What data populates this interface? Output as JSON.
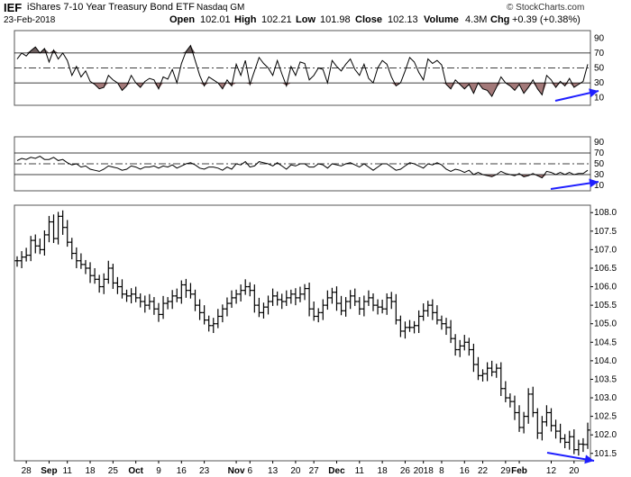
{
  "header": {
    "symbol": "IEF",
    "name": "iShares 7-10 Year Treasury Bond ETF",
    "exchange": "Nasdaq GM",
    "watermark": "© StockCharts.com",
    "date": "23-Feb-2018",
    "open_label": "Open",
    "open": "102.01",
    "high_label": "High",
    "high": "102.21",
    "low_label": "Low",
    "low": "101.98",
    "close_label": "Close",
    "close": "102.13",
    "volume_label": "Volume",
    "volume": "4.3M",
    "chg_label": "Chg",
    "chg": "+0.39 (+0.38%)"
  },
  "colors": {
    "price_bars": "#000000",
    "oscillator_line": "#000000",
    "overbought_fill": "#6b5d5d",
    "oversold_fill": "#a37979",
    "annotation_arrow": "#1f1fff",
    "grid": "#dddddd",
    "frame": "#555555"
  },
  "chart_data": [
    {
      "type": "line",
      "panel": "oscillator-1",
      "y_ticks": [
        "10",
        "30",
        "50",
        "70",
        "90"
      ],
      "ylim": [
        0,
        100
      ],
      "guide_lines": [
        30,
        50,
        70
      ],
      "x": [
        "Aug 24",
        "Aug 25",
        "Aug 28",
        "Aug 29",
        "Aug 30",
        "Aug 31",
        "Sep 1",
        "Sep 5",
        "Sep 6",
        "Sep 7",
        "Sep 8",
        "Sep 11",
        "Sep 12",
        "Sep 13",
        "Sep 14",
        "Sep 15",
        "Sep 18",
        "Sep 19",
        "Sep 20",
        "Sep 21",
        "Sep 22",
        "Sep 25",
        "Sep 26",
        "Sep 27",
        "Sep 28",
        "Sep 29",
        "Oct 2",
        "Oct 3",
        "Oct 4",
        "Oct 5",
        "Oct 6",
        "Oct 9",
        "Oct 10",
        "Oct 11",
        "Oct 12",
        "Oct 13",
        "Oct 16",
        "Oct 17",
        "Oct 18",
        "Oct 19",
        "Oct 20",
        "Oct 23",
        "Oct 24",
        "Oct 25",
        "Oct 26",
        "Oct 27",
        "Oct 30",
        "Oct 31",
        "Nov 1",
        "Nov 2",
        "Nov 3",
        "Nov 6",
        "Nov 7",
        "Nov 8",
        "Nov 9",
        "Nov 10",
        "Nov 13",
        "Nov 14",
        "Nov 15",
        "Nov 16",
        "Nov 17",
        "Nov 20",
        "Nov 21",
        "Nov 22",
        "Nov 24",
        "Nov 27",
        "Nov 28",
        "Nov 29",
        "Nov 30",
        "Dec 1",
        "Dec 4",
        "Dec 5",
        "Dec 6",
        "Dec 7",
        "Dec 8",
        "Dec 11",
        "Dec 12",
        "Dec 13",
        "Dec 14",
        "Dec 15",
        "Dec 18",
        "Dec 19",
        "Dec 20",
        "Dec 21",
        "Dec 22",
        "Dec 26",
        "Dec 27",
        "Dec 28",
        "Dec 29",
        "Jan 2",
        "Jan 3",
        "Jan 4",
        "Jan 5",
        "Jan 8",
        "Jan 9",
        "Jan 10",
        "Jan 11",
        "Jan 12",
        "Jan 16",
        "Jan 17",
        "Jan 18",
        "Jan 19",
        "Jan 22",
        "Jan 23",
        "Jan 24",
        "Jan 25",
        "Jan 26",
        "Jan 29",
        "Jan 30",
        "Jan 31",
        "Feb 1",
        "Feb 2",
        "Feb 5",
        "Feb 6",
        "Feb 7",
        "Feb 8",
        "Feb 9",
        "Feb 12",
        "Feb 13",
        "Feb 14",
        "Feb 15",
        "Feb 16",
        "Feb 20",
        "Feb 21",
        "Feb 22",
        "Feb 23"
      ],
      "values": [
        62,
        70,
        66,
        73,
        78,
        70,
        76,
        58,
        74,
        62,
        70,
        60,
        40,
        52,
        38,
        46,
        32,
        28,
        22,
        24,
        40,
        34,
        30,
        20,
        26,
        40,
        30,
        24,
        32,
        36,
        34,
        22,
        38,
        35,
        48,
        30,
        56,
        72,
        80,
        60,
        40,
        26,
        38,
        34,
        30,
        22,
        34,
        26,
        55,
        40,
        60,
        28,
        46,
        64,
        56,
        50,
        40,
        60,
        42,
        26,
        52,
        40,
        58,
        56,
        34,
        40,
        50,
        48,
        30,
        60,
        52,
        46,
        55,
        62,
        48,
        40,
        55,
        36,
        30,
        50,
        60,
        55,
        38,
        26,
        30,
        46,
        64,
        58,
        44,
        34,
        62,
        56,
        60,
        54,
        28,
        22,
        34,
        28,
        22,
        28,
        16,
        30,
        22,
        20,
        12,
        24,
        38,
        30,
        26,
        20,
        28,
        16,
        24,
        34,
        22,
        14,
        40,
        34,
        24,
        32,
        26,
        36,
        24,
        28,
        32,
        55
      ]
    },
    {
      "type": "line",
      "panel": "oscillator-2",
      "y_ticks": [
        "10",
        "30",
        "50",
        "70",
        "90"
      ],
      "ylim": [
        0,
        100
      ],
      "guide_lines": [
        30,
        50,
        70
      ],
      "x": [
        "Aug 24",
        "Aug 25",
        "Aug 28",
        "Aug 29",
        "Aug 30",
        "Aug 31",
        "Sep 1",
        "Sep 5",
        "Sep 6",
        "Sep 7",
        "Sep 8",
        "Sep 11",
        "Sep 12",
        "Sep 13",
        "Sep 14",
        "Sep 15",
        "Sep 18",
        "Sep 19",
        "Sep 20",
        "Sep 21",
        "Sep 22",
        "Sep 25",
        "Sep 26",
        "Sep 27",
        "Sep 28",
        "Sep 29",
        "Oct 2",
        "Oct 3",
        "Oct 4",
        "Oct 5",
        "Oct 6",
        "Oct 9",
        "Oct 10",
        "Oct 11",
        "Oct 12",
        "Oct 13",
        "Oct 16",
        "Oct 17",
        "Oct 18",
        "Oct 19",
        "Oct 20",
        "Oct 23",
        "Oct 24",
        "Oct 25",
        "Oct 26",
        "Oct 27",
        "Oct 30",
        "Oct 31",
        "Nov 1",
        "Nov 2",
        "Nov 3",
        "Nov 6",
        "Nov 7",
        "Nov 8",
        "Nov 9",
        "Nov 10",
        "Nov 13",
        "Nov 14",
        "Nov 15",
        "Nov 16",
        "Nov 17",
        "Nov 20",
        "Nov 21",
        "Nov 22",
        "Nov 24",
        "Nov 27",
        "Nov 28",
        "Nov 29",
        "Nov 30",
        "Dec 1",
        "Dec 4",
        "Dec 5",
        "Dec 6",
        "Dec 7",
        "Dec 8",
        "Dec 11",
        "Dec 12",
        "Dec 13",
        "Dec 14",
        "Dec 15",
        "Dec 18",
        "Dec 19",
        "Dec 20",
        "Dec 21",
        "Dec 22",
        "Dec 26",
        "Dec 27",
        "Dec 28",
        "Dec 29",
        "Jan 2",
        "Jan 3",
        "Jan 4",
        "Jan 5",
        "Jan 8",
        "Jan 9",
        "Jan 10",
        "Jan 11",
        "Jan 12",
        "Jan 16",
        "Jan 17",
        "Jan 18",
        "Jan 19",
        "Jan 22",
        "Jan 23",
        "Jan 24",
        "Jan 25",
        "Jan 26",
        "Jan 29",
        "Jan 30",
        "Jan 31",
        "Feb 1",
        "Feb 2",
        "Feb 5",
        "Feb 6",
        "Feb 7",
        "Feb 8",
        "Feb 9",
        "Feb 12",
        "Feb 13",
        "Feb 14",
        "Feb 15",
        "Feb 16",
        "Feb 20",
        "Feb 21",
        "Feb 22",
        "Feb 23"
      ],
      "values": [
        56,
        60,
        58,
        62,
        60,
        64,
        58,
        58,
        62,
        56,
        58,
        52,
        48,
        50,
        44,
        46,
        40,
        38,
        36,
        40,
        46,
        44,
        42,
        38,
        40,
        46,
        44,
        40,
        44,
        44,
        46,
        42,
        46,
        44,
        48,
        42,
        46,
        50,
        52,
        48,
        42,
        40,
        44,
        44,
        42,
        38,
        44,
        40,
        50,
        48,
        54,
        44,
        46,
        54,
        52,
        50,
        46,
        52,
        46,
        40,
        48,
        46,
        50,
        50,
        44,
        44,
        50,
        48,
        42,
        50,
        48,
        46,
        50,
        52,
        48,
        44,
        50,
        44,
        38,
        44,
        50,
        50,
        44,
        38,
        40,
        46,
        52,
        50,
        46,
        42,
        50,
        48,
        52,
        48,
        40,
        36,
        40,
        38,
        34,
        38,
        30,
        34,
        30,
        28,
        26,
        30,
        36,
        32,
        30,
        28,
        32,
        26,
        28,
        32,
        28,
        24,
        36,
        34,
        30,
        34,
        30,
        34,
        30,
        32,
        32,
        38
      ]
    },
    {
      "type": "ohlc",
      "panel": "price",
      "y_ticks": [
        "101.5",
        "102.0",
        "102.5",
        "103.0",
        "103.5",
        "104.0",
        "104.5",
        "105.0",
        "105.5",
        "106.0",
        "106.5",
        "107.0",
        "107.5",
        "108.0"
      ],
      "ylim": [
        101.3,
        108.2
      ],
      "x_tick_labels": [
        "28",
        "Sep",
        "11",
        "18",
        "25",
        "Oct",
        "9",
        "16",
        "23",
        "Nov",
        "6",
        "13",
        "20",
        "27",
        "Dec",
        "11",
        "18",
        "26",
        "2018",
        "8",
        "16",
        "22",
        "29",
        "Feb",
        "12",
        "20"
      ],
      "x_tick_dates": [
        "Aug 28",
        "Sep 5",
        "Sep 11",
        "Sep 18",
        "Sep 25",
        "Oct 2",
        "Oct 9",
        "Oct 16",
        "Oct 23",
        "Nov 1",
        "Nov 6",
        "Nov 13",
        "Nov 20",
        "Nov 27",
        "Dec 4",
        "Dec 11",
        "Dec 18",
        "Dec 26",
        "Jan 2",
        "Jan 8",
        "Jan 16",
        "Jan 22",
        "Jan 29",
        "Feb 1",
        "Feb 12",
        "Feb 20"
      ],
      "x": [
        "Aug 24",
        "Aug 25",
        "Aug 28",
        "Aug 29",
        "Aug 30",
        "Aug 31",
        "Sep 1",
        "Sep 5",
        "Sep 6",
        "Sep 7",
        "Sep 8",
        "Sep 11",
        "Sep 12",
        "Sep 13",
        "Sep 14",
        "Sep 15",
        "Sep 18",
        "Sep 19",
        "Sep 20",
        "Sep 21",
        "Sep 22",
        "Sep 25",
        "Sep 26",
        "Sep 27",
        "Sep 28",
        "Sep 29",
        "Oct 2",
        "Oct 3",
        "Oct 4",
        "Oct 5",
        "Oct 6",
        "Oct 9",
        "Oct 10",
        "Oct 11",
        "Oct 12",
        "Oct 13",
        "Oct 16",
        "Oct 17",
        "Oct 18",
        "Oct 19",
        "Oct 20",
        "Oct 23",
        "Oct 24",
        "Oct 25",
        "Oct 26",
        "Oct 27",
        "Oct 30",
        "Oct 31",
        "Nov 1",
        "Nov 2",
        "Nov 3",
        "Nov 6",
        "Nov 7",
        "Nov 8",
        "Nov 9",
        "Nov 10",
        "Nov 13",
        "Nov 14",
        "Nov 15",
        "Nov 16",
        "Nov 17",
        "Nov 20",
        "Nov 21",
        "Nov 22",
        "Nov 24",
        "Nov 27",
        "Nov 28",
        "Nov 29",
        "Nov 30",
        "Dec 1",
        "Dec 4",
        "Dec 5",
        "Dec 6",
        "Dec 7",
        "Dec 8",
        "Dec 11",
        "Dec 12",
        "Dec 13",
        "Dec 14",
        "Dec 15",
        "Dec 18",
        "Dec 19",
        "Dec 20",
        "Dec 21",
        "Dec 22",
        "Dec 26",
        "Dec 27",
        "Dec 28",
        "Dec 29",
        "Jan 2",
        "Jan 3",
        "Jan 4",
        "Jan 5",
        "Jan 8",
        "Jan 9",
        "Jan 10",
        "Jan 11",
        "Jan 12",
        "Jan 16",
        "Jan 17",
        "Jan 18",
        "Jan 19",
        "Jan 22",
        "Jan 23",
        "Jan 24",
        "Jan 25",
        "Jan 26",
        "Jan 29",
        "Jan 30",
        "Jan 31",
        "Feb 1",
        "Feb 2",
        "Feb 5",
        "Feb 6",
        "Feb 7",
        "Feb 8",
        "Feb 9",
        "Feb 12",
        "Feb 13",
        "Feb 14",
        "Feb 15",
        "Feb 16",
        "Feb 20",
        "Feb 21",
        "Feb 22",
        "Feb 23"
      ],
      "close": [
        106.7,
        106.8,
        106.85,
        107.25,
        107.1,
        107.0,
        107.4,
        107.75,
        107.3,
        107.9,
        107.6,
        107.2,
        106.9,
        106.7,
        106.6,
        106.5,
        106.3,
        106.2,
        106.0,
        106.2,
        106.5,
        106.1,
        106.0,
        105.8,
        105.75,
        105.8,
        105.7,
        105.6,
        105.5,
        105.6,
        105.4,
        105.25,
        105.55,
        105.6,
        105.75,
        105.7,
        106.05,
        105.9,
        105.8,
        105.5,
        105.3,
        105.1,
        104.95,
        105.0,
        105.2,
        105.4,
        105.55,
        105.7,
        105.8,
        105.9,
        106.0,
        105.9,
        105.5,
        105.3,
        105.45,
        105.6,
        105.75,
        105.65,
        105.6,
        105.7,
        105.8,
        105.7,
        105.8,
        105.95,
        105.4,
        105.2,
        105.3,
        105.5,
        105.7,
        105.85,
        105.55,
        105.35,
        105.6,
        105.75,
        105.6,
        105.4,
        105.6,
        105.7,
        105.5,
        105.45,
        105.4,
        105.7,
        105.6,
        105.1,
        104.8,
        104.9,
        104.9,
        104.95,
        105.2,
        105.35,
        105.5,
        105.3,
        105.1,
        105.0,
        104.9,
        104.6,
        104.3,
        104.4,
        104.5,
        104.3,
        103.9,
        103.6,
        103.65,
        103.8,
        103.7,
        103.8,
        103.25,
        103.0,
        102.9,
        102.6,
        102.2,
        102.5,
        103.1,
        102.6,
        102.05,
        102.35,
        102.6,
        102.25,
        102.1,
        101.9,
        101.8,
        101.95,
        101.6,
        101.75,
        101.74,
        102.13
      ]
    }
  ]
}
